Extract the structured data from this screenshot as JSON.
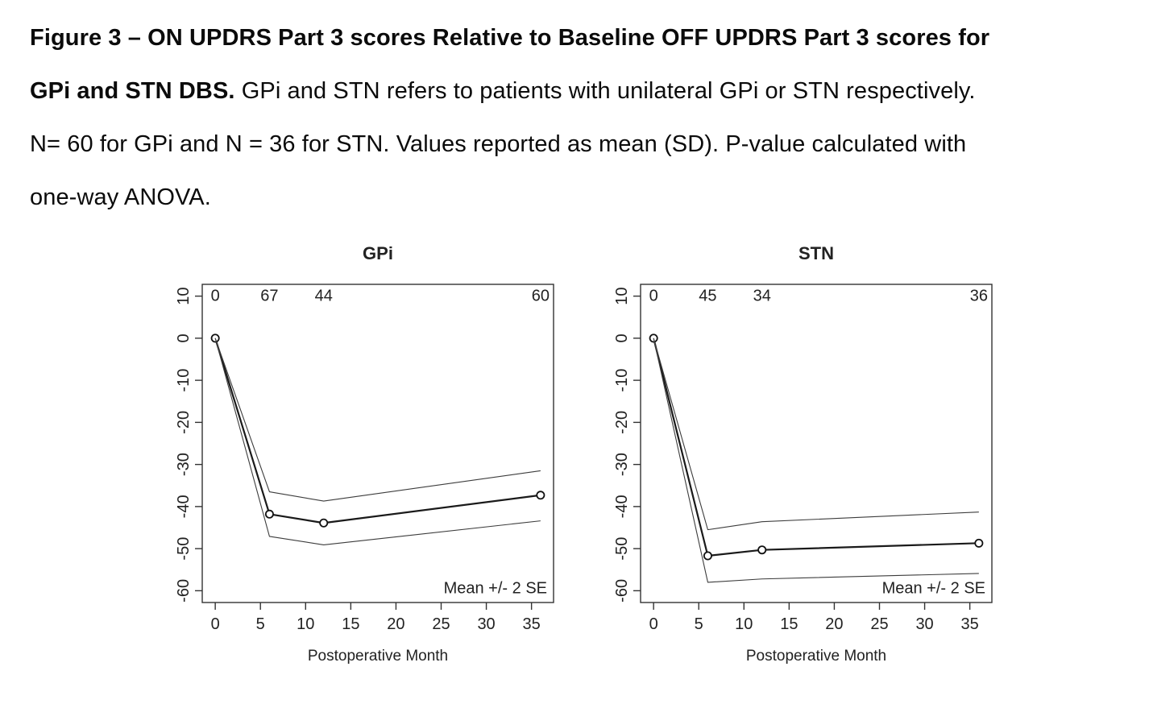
{
  "figure": {
    "caption": {
      "lines": [
        {
          "bold": "Figure 3 – ON UPDRS Part 3 scores Relative to Baseline OFF UPDRS Part 3 scores for",
          "regular": ""
        },
        {
          "bold": "GPi and STN DBS.",
          "regular": " GPi and STN refers to patients with unilateral GPi or STN respectively."
        },
        {
          "bold": "",
          "regular": "N= 60 for GPi and N = 36 for STN. Values reported as mean (SD). P-value calculated with"
        },
        {
          "bold": "",
          "regular": "one-way ANOVA."
        }
      ]
    }
  },
  "chart_data": [
    {
      "type": "line",
      "title": "GPi",
      "xlabel": "Postoperative Month",
      "ylabel": "",
      "x": [
        0,
        6,
        12,
        36
      ],
      "xlim": [
        0,
        36
      ],
      "ylim": [
        -60,
        10
      ],
      "x_ticks": [
        0,
        5,
        10,
        15,
        20,
        25,
        30,
        35
      ],
      "y_ticks": [
        10,
        0,
        -10,
        -20,
        -30,
        -40,
        -50,
        -60
      ],
      "top_counts": {
        "x": [
          0,
          6,
          12,
          36
        ],
        "labels": [
          "0",
          "67",
          "44",
          "60"
        ]
      },
      "series": [
        {
          "name": "mean",
          "values": [
            0,
            -41.8,
            -43.9,
            -37.3
          ],
          "marker": "open-circle",
          "line_width": 2.2
        },
        {
          "name": "mean_plus_2se",
          "values": [
            0,
            -36.5,
            -38.7,
            -31.5
          ],
          "marker": "none",
          "line_width": 1.1
        },
        {
          "name": "mean_minus_2se",
          "values": [
            0,
            -47.1,
            -49.1,
            -43.4
          ],
          "marker": "none",
          "line_width": 1.1
        }
      ],
      "annotation": "Mean +/- 2 SE",
      "legend_position": "inside-bottom-right",
      "grid": false,
      "line_color": "#1a1a1a",
      "se_line_color": "#3c3c3c"
    },
    {
      "type": "line",
      "title": "STN",
      "xlabel": "Postoperative Month",
      "ylabel": "",
      "x": [
        0,
        6,
        12,
        36
      ],
      "xlim": [
        0,
        36
      ],
      "ylim": [
        -60,
        10
      ],
      "x_ticks": [
        0,
        5,
        10,
        15,
        20,
        25,
        30,
        35
      ],
      "y_ticks": [
        10,
        0,
        -10,
        -20,
        -30,
        -40,
        -50,
        -60
      ],
      "top_counts": {
        "x": [
          0,
          6,
          12,
          36
        ],
        "labels": [
          "0",
          "45",
          "34",
          "36"
        ]
      },
      "series": [
        {
          "name": "mean",
          "values": [
            0,
            -51.7,
            -50.3,
            -48.7
          ],
          "marker": "open-circle",
          "line_width": 2.2
        },
        {
          "name": "mean_plus_2se",
          "values": [
            0,
            -45.5,
            -43.6,
            -41.3
          ],
          "marker": "none",
          "line_width": 1.1
        },
        {
          "name": "mean_minus_2se",
          "values": [
            0,
            -58.0,
            -57.2,
            -55.9
          ],
          "marker": "none",
          "line_width": 1.1
        }
      ],
      "annotation": "Mean +/- 2 SE",
      "legend_position": "inside-bottom-right",
      "grid": false,
      "line_color": "#1a1a1a",
      "se_line_color": "#3c3c3c"
    }
  ]
}
